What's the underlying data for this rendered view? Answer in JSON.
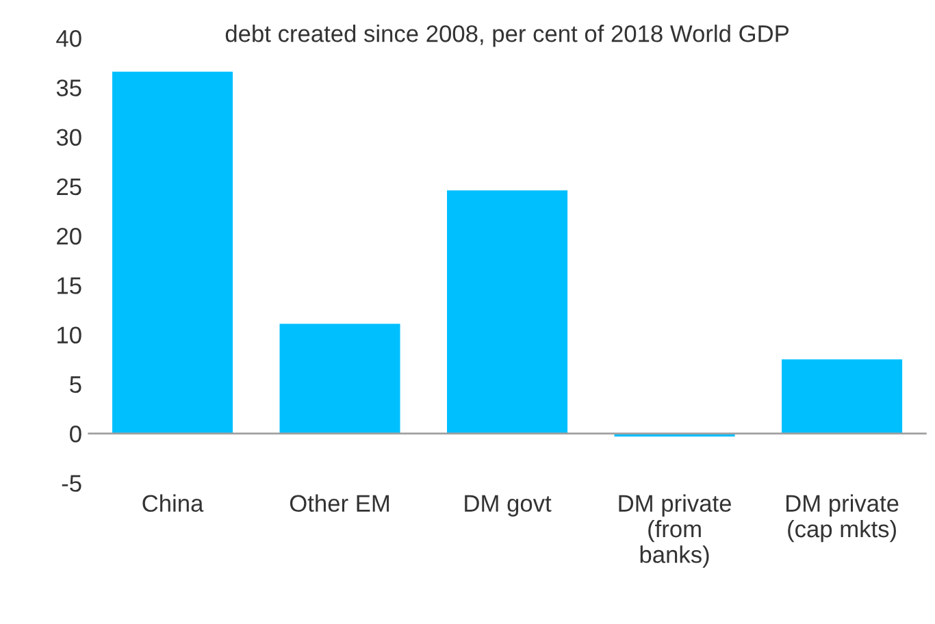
{
  "chart_data": {
    "type": "bar",
    "title": "debt created since 2008, per cent of 2018 World GDP",
    "categories": [
      "China",
      "Other EM",
      "DM govt",
      "DM private\n(from\nbanks)",
      "DM private\n(cap mkts)"
    ],
    "values": [
      36.6,
      11.1,
      24.6,
      -0.3,
      7.5
    ],
    "color": "#00bfff",
    "ylim": [
      -5,
      40
    ],
    "yticks": [
      -5,
      0,
      5,
      10,
      15,
      20,
      25,
      30,
      35,
      40
    ],
    "grid": false,
    "legend": false
  }
}
